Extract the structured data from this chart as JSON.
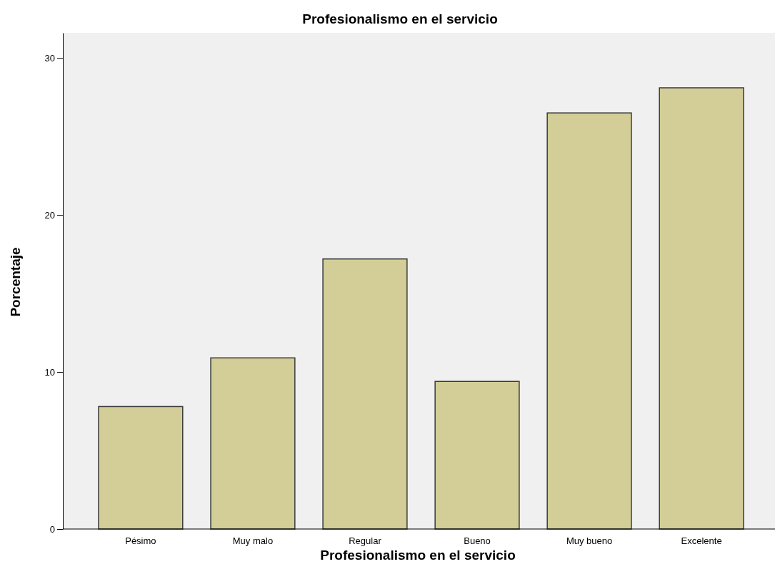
{
  "chart_data": {
    "type": "bar",
    "title": "Profesionalismo en el servicio",
    "xlabel": "Profesionalismo en el servicio",
    "ylabel": "Porcentaje",
    "categories": [
      "Pésimo",
      "Muy malo",
      "Regular",
      "Bueno",
      "Muy bueno",
      "Excelente"
    ],
    "values": [
      7.8,
      10.9,
      17.2,
      9.4,
      26.5,
      28.1
    ],
    "color": "#d3ce97",
    "ylim": [
      0,
      31.6
    ],
    "yticks": [
      0,
      10,
      20,
      30
    ],
    "grid": false
  }
}
